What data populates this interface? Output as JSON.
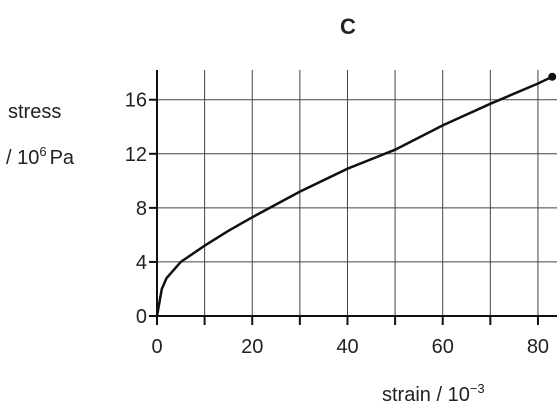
{
  "chart_data": {
    "type": "line",
    "title": "C",
    "y_label": {
      "line1": "stress",
      "line2": "/ 10",
      "line2_sup": "6",
      "line2_end": "Pa"
    },
    "x_label": {
      "text": "strain / 10",
      "sup": "−3"
    },
    "series": [
      {
        "color": "#111111",
        "x": [
          0,
          1,
          2,
          5,
          10,
          15,
          20,
          30,
          40,
          50,
          60,
          70,
          80,
          83
        ],
        "values": [
          0,
          2.0,
          2.8,
          4.0,
          5.2,
          6.3,
          7.3,
          9.2,
          10.9,
          12.3,
          14.1,
          15.7,
          17.2,
          17.7
        ]
      }
    ],
    "xlim": [
      0,
      84
    ],
    "ylim": [
      0,
      18.2
    ],
    "xticks": [
      0,
      20,
      40,
      60,
      80
    ],
    "yticks": [
      0,
      4,
      8,
      12,
      16
    ],
    "x_minor_ticks": [
      10,
      30,
      50,
      70
    ],
    "grid": true
  }
}
